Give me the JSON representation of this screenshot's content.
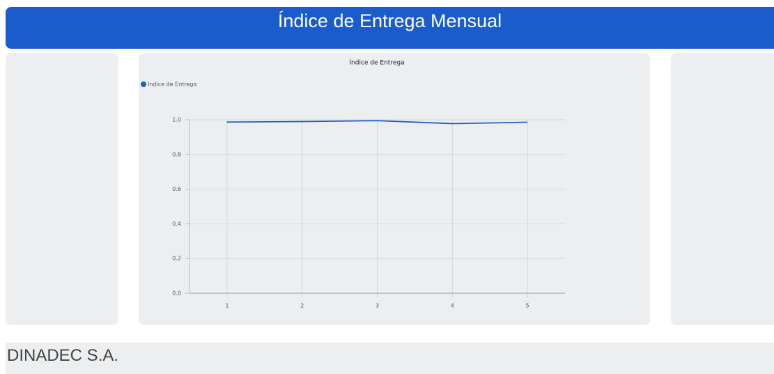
{
  "header": {
    "title": "Índice de Entrega Mensual"
  },
  "chart_data": {
    "type": "line",
    "title": "Índice de Entrega",
    "x": [
      1,
      2,
      3,
      4,
      5
    ],
    "series": [
      {
        "name": "Indice de Entrega",
        "color": "#1f5fbf",
        "values": [
          0.987,
          0.99,
          0.995,
          0.978,
          0.986
        ]
      }
    ],
    "xlim": [
      0.5,
      5.5
    ],
    "xticks": [
      1,
      2,
      3,
      4,
      5
    ],
    "ylim": [
      0,
      1
    ],
    "yticks": [
      {
        "value": 0,
        "label": "0.0"
      },
      0.2,
      0.4,
      0.6,
      0.8,
      {
        "value": 1,
        "label": "1.0"
      }
    ],
    "grid": true,
    "legend": "top-left"
  },
  "footer": {
    "company": "DINADEC S.A."
  }
}
